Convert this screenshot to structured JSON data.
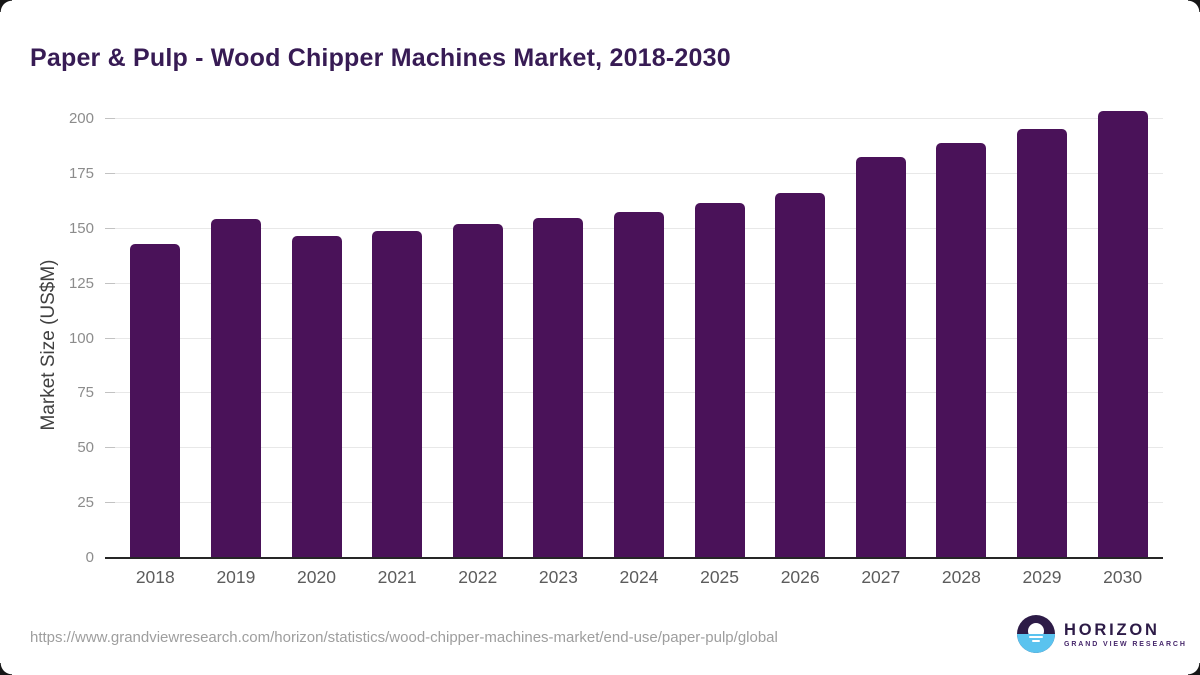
{
  "chart_data": {
    "type": "bar",
    "title": "Paper & Pulp - Wood Chipper Machines Market, 2018-2030",
    "ylabel": "Market Size (US$M)",
    "xlabel": "",
    "categories": [
      "2018",
      "2019",
      "2020",
      "2021",
      "2022",
      "2023",
      "2024",
      "2025",
      "2026",
      "2027",
      "2028",
      "2029",
      "2030"
    ],
    "values": [
      142.9,
      154.6,
      146.5,
      149.2,
      152.0,
      155.0,
      157.5,
      161.9,
      166.4,
      182.8,
      188.9,
      195.6,
      203.5
    ],
    "yticks": [
      0,
      25,
      50,
      75,
      100,
      125,
      150,
      175,
      200
    ],
    "ylim": [
      0,
      210
    ],
    "grid": true,
    "legend_position": "none",
    "bar_color": "#4a1259",
    "title_color": "#371b54",
    "gridline_color": "#e8e8e8",
    "axis_line_color": "#262626",
    "ytick_color": "#8c8c8c",
    "xtick_color": "#5c5c5c"
  },
  "footer": {
    "source_url": "https://www.grandviewresearch.com/horizon/statistics/wood-chipper-machines-market/end-use/paper-pulp/global",
    "logo": {
      "title": "HORIZON",
      "subtitle": "GRAND VIEW RESEARCH",
      "purple": "#2d1b47",
      "blue": "#5ac3ef",
      "icon": "horizon-sunset-circle"
    }
  }
}
